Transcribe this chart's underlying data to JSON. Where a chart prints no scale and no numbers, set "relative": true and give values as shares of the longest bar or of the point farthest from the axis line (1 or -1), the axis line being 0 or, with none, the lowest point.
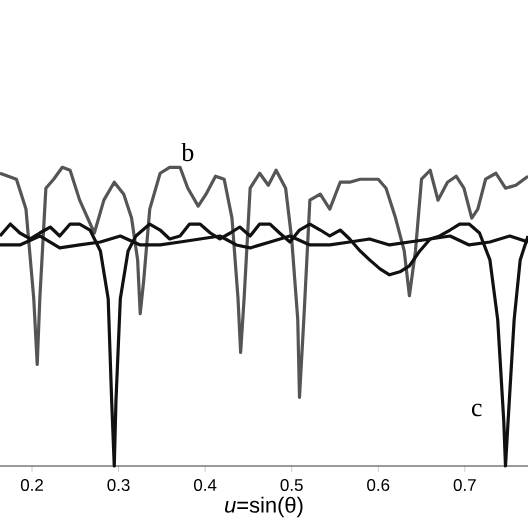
{
  "chart_data": {
    "type": "line",
    "relative": true,
    "xlabel": "*u*=sin(θ)",
    "xlim": [
      0.163,
      0.773
    ],
    "xticks": [
      0.2,
      0.3,
      0.4,
      0.5,
      0.6,
      0.7
    ],
    "grid": false,
    "marker": "none",
    "line_style": "solid",
    "series": [
      {
        "name": "b",
        "color": "#555555",
        "x": [
          0.163,
          0.182,
          0.193,
          0.202,
          0.206,
          0.209,
          0.216,
          0.225,
          0.235,
          0.244,
          0.255,
          0.272,
          0.283,
          0.295,
          0.306,
          0.315,
          0.322,
          0.325,
          0.329,
          0.336,
          0.348,
          0.359,
          0.371,
          0.38,
          0.392,
          0.401,
          0.412,
          0.422,
          0.431,
          0.438,
          0.441,
          0.445,
          0.452,
          0.463,
          0.473,
          0.482,
          0.493,
          0.5,
          0.507,
          0.509,
          0.514,
          0.521,
          0.533,
          0.544,
          0.556,
          0.567,
          0.579,
          0.588,
          0.6,
          0.609,
          0.62,
          0.63,
          0.636,
          0.643,
          0.65,
          0.66,
          0.669,
          0.68,
          0.69,
          0.699,
          0.708,
          0.715,
          0.724,
          0.736,
          0.747,
          0.759,
          0.773
        ],
        "values": [
          0.98,
          0.96,
          0.86,
          0.56,
          0.34,
          0.56,
          0.93,
          0.96,
          1.0,
          0.99,
          0.89,
          0.78,
          0.89,
          0.95,
          0.91,
          0.83,
          0.69,
          0.51,
          0.62,
          0.86,
          0.98,
          1.0,
          1.0,
          0.93,
          0.87,
          0.91,
          0.97,
          0.96,
          0.83,
          0.56,
          0.38,
          0.56,
          0.93,
          0.98,
          0.94,
          0.99,
          0.93,
          0.76,
          0.49,
          0.23,
          0.49,
          0.89,
          0.91,
          0.86,
          0.95,
          0.95,
          0.96,
          0.96,
          0.96,
          0.93,
          0.83,
          0.72,
          0.57,
          0.72,
          0.96,
          0.99,
          0.89,
          0.95,
          0.97,
          0.93,
          0.83,
          0.86,
          0.96,
          0.98,
          0.93,
          0.94,
          0.97
        ]
      },
      {
        "name": "c",
        "color": "#111111",
        "x": [
          0.163,
          0.175,
          0.186,
          0.198,
          0.209,
          0.221,
          0.232,
          0.244,
          0.255,
          0.267,
          0.279,
          0.288,
          0.292,
          0.295,
          0.297,
          0.302,
          0.311,
          0.32,
          0.336,
          0.348,
          0.359,
          0.371,
          0.382,
          0.394,
          0.406,
          0.417,
          0.429,
          0.44,
          0.452,
          0.463,
          0.475,
          0.486,
          0.498,
          0.509,
          0.521,
          0.533,
          0.544,
          0.556,
          0.567,
          0.579,
          0.59,
          0.602,
          0.613,
          0.625,
          0.636,
          0.648,
          0.66,
          0.671,
          0.683,
          0.694,
          0.705,
          0.717,
          0.729,
          0.738,
          0.745,
          0.747,
          0.75,
          0.757,
          0.764,
          0.773
        ],
        "values": [
          0.77,
          0.81,
          0.78,
          0.76,
          0.78,
          0.8,
          0.77,
          0.81,
          0.81,
          0.79,
          0.72,
          0.56,
          0.22,
          0,
          0.22,
          0.56,
          0.72,
          0.77,
          0.81,
          0.79,
          0.76,
          0.77,
          0.81,
          0.81,
          0.78,
          0.76,
          0.78,
          0.8,
          0.77,
          0.81,
          0.81,
          0.78,
          0.75,
          0.79,
          0.81,
          0.79,
          0.77,
          0.79,
          0.76,
          0.72,
          0.69,
          0.66,
          0.64,
          0.65,
          0.67,
          0.72,
          0.76,
          0.77,
          0.79,
          0.81,
          0.81,
          0.78,
          0.69,
          0.49,
          0.15,
          0,
          0.15,
          0.49,
          0.69,
          0.77
        ]
      },
      {
        "color": "#111111",
        "x": [
          0.163,
          0.186,
          0.209,
          0.232,
          0.255,
          0.279,
          0.302,
          0.325,
          0.348,
          0.371,
          0.394,
          0.417,
          0.436,
          0.452,
          0.475,
          0.498,
          0.521,
          0.544,
          0.567,
          0.59,
          0.613,
          0.636,
          0.66,
          0.683,
          0.705,
          0.729,
          0.752,
          0.773
        ],
        "values": [
          0.74,
          0.74,
          0.77,
          0.73,
          0.74,
          0.75,
          0.77,
          0.74,
          0.74,
          0.75,
          0.76,
          0.77,
          0.74,
          0.73,
          0.75,
          0.77,
          0.74,
          0.74,
          0.75,
          0.76,
          0.74,
          0.75,
          0.76,
          0.77,
          0.74,
          0.75,
          0.77,
          0.75
        ]
      }
    ]
  }
}
